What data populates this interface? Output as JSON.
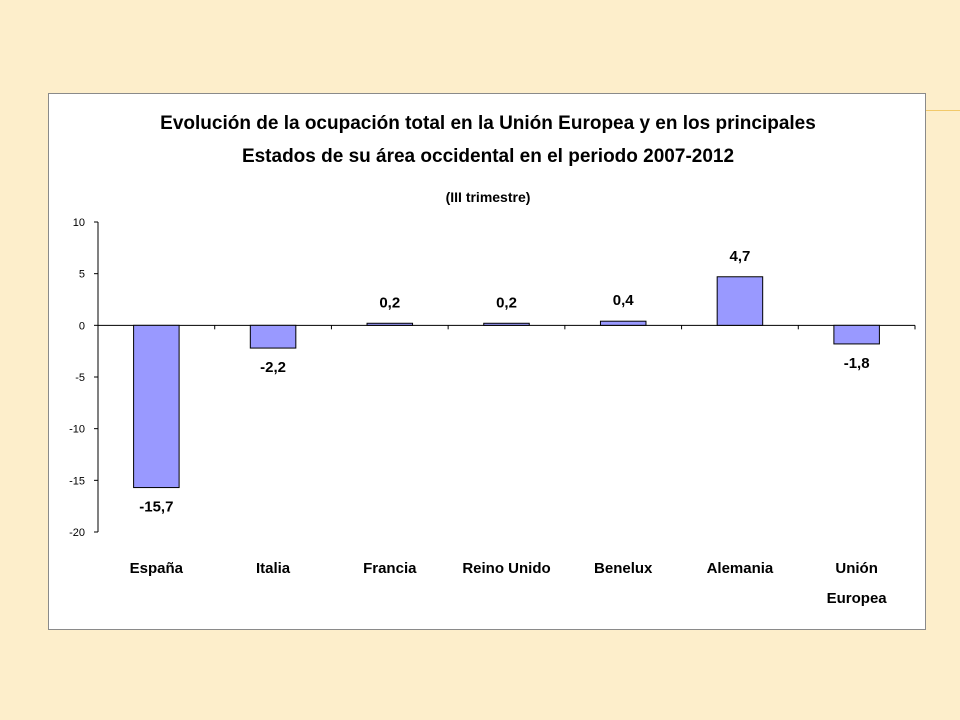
{
  "chart_data": {
    "type": "bar",
    "title_lines": [
      "Evolución de la ocupación total en la Unión Europea y en los principales",
      "Estados de su área occidental en el periodo 2007-2012"
    ],
    "subtitle": "(III trimestre)",
    "categories": [
      [
        "España"
      ],
      [
        "Italia"
      ],
      [
        "Francia"
      ],
      [
        "Reino Unido"
      ],
      [
        "Benelux"
      ],
      [
        "Alemania"
      ],
      [
        "Unión",
        "Europea"
      ]
    ],
    "values": [
      -15.7,
      -2.2,
      0.2,
      0.2,
      0.4,
      4.7,
      -1.8
    ],
    "data_labels": [
      "-15,7",
      "-2,2",
      "0,2",
      "0,2",
      "0,4",
      "4,7",
      "-1,8"
    ],
    "ylim": [
      -20,
      10
    ],
    "yticks": [
      10,
      5,
      0,
      -5,
      -10,
      -15,
      -20
    ],
    "grid": false,
    "legend": "none",
    "bar_color": "#9999ff",
    "bar_stroke": "#000000",
    "xlabel": "",
    "ylabel": ""
  }
}
